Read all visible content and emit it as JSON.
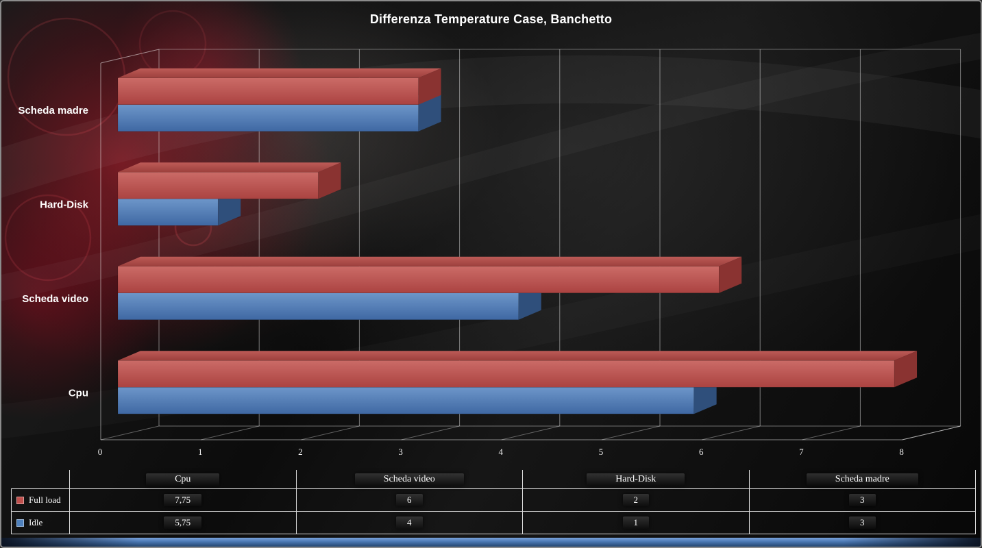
{
  "title": "Differenza Temperature Case, Banchetto",
  "chart_data": {
    "type": "bar",
    "style": "3d",
    "orientation": "horizontal",
    "title": "Differenza Temperature Case, Banchetto",
    "categories": [
      "Scheda madre",
      "Hard-Disk",
      "Scheda video",
      "Cpu"
    ],
    "series": [
      {
        "name": "Full load",
        "color": "#c0504d",
        "values": [
          3,
          2,
          6,
          7.75
        ]
      },
      {
        "name": "Idle",
        "color": "#4f81bd",
        "values": [
          3,
          1,
          4,
          5.75
        ]
      }
    ],
    "xlim": [
      0,
      8
    ],
    "xticks": [
      0,
      1,
      2,
      3,
      4,
      5,
      6,
      7,
      8
    ],
    "xlabel": "",
    "ylabel": "",
    "grid": true,
    "legend_position": "data-table-left"
  },
  "table": {
    "columns": [
      "Cpu",
      "Scheda video",
      "Hard-Disk",
      "Scheda madre"
    ],
    "rows": [
      {
        "name": "Full load",
        "swatch_color": "#c0504d",
        "values": [
          "7,75",
          "6",
          "2",
          "3"
        ]
      },
      {
        "name": "Idle",
        "swatch_color": "#4f81bd",
        "values": [
          "5,75",
          "4",
          "1",
          "3"
        ]
      }
    ]
  },
  "colors": {
    "full_load": "#c0504d",
    "idle": "#4f81bd",
    "background_glow": "#c01c2e",
    "gridline": "#cccccc",
    "text": "#ffffff"
  }
}
